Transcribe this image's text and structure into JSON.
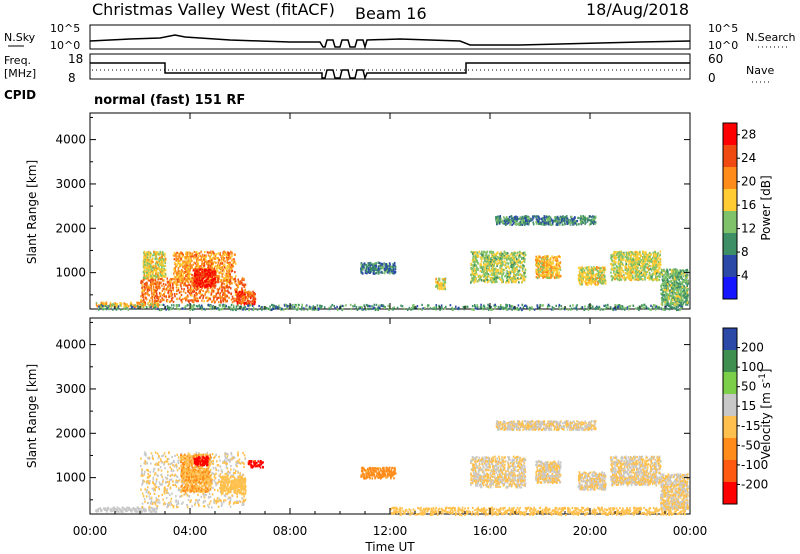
{
  "header": {
    "station": "Christmas Valley West (fitACF)",
    "beam": "Beam 16",
    "date": "18/Aug/2018"
  },
  "panels": {
    "nsky": {
      "label": "N.Sky",
      "scale_top": "10^5",
      "scale_bottom": "10^0",
      "right_label": "N.Search",
      "right_top": "10^5",
      "right_bottom": "10^0"
    },
    "freq": {
      "label_top": "Freq.",
      "label_bottom": "[MHz]",
      "tick_top": "18",
      "tick_bottom": "8",
      "right_label": "Nave",
      "right_top": "60",
      "right_bottom": "0"
    },
    "cpid": {
      "label": "CPID",
      "text": "normal (fast) 151 RF"
    }
  },
  "xaxis": {
    "label": "Time UT",
    "ticks": [
      "00:00",
      "04:00",
      "08:00",
      "12:00",
      "16:00",
      "20:00",
      "00:00"
    ]
  },
  "colors": {
    "power_scale": [
      "#1515ff",
      "#2c49a8",
      "#3f8f66",
      "#7fc26a",
      "#ffcc33",
      "#ff8c1a",
      "#f04a10",
      "#ff0000"
    ],
    "velocity_scale": [
      "#ff0000",
      "#ff5a10",
      "#ff8c1a",
      "#ffc04d",
      "#c8c8c8",
      "#7ccf48",
      "#3f8f50",
      "#2c49a8"
    ]
  },
  "chart_data": [
    {
      "type": "heatmap",
      "title": "",
      "xlabel": "Time UT",
      "ylabel": "Slant Range [km]",
      "xlim": [
        0,
        24
      ],
      "ylim": [
        180,
        4600
      ],
      "yticks": [
        "1000",
        "2000",
        "3000",
        "4000"
      ],
      "colorbar": {
        "label": "Power [dB]",
        "ticks": [
          "4",
          "8",
          "12",
          "16",
          "20",
          "24",
          "28"
        ],
        "range": [
          0,
          30
        ]
      },
      "regions": [
        {
          "t0": 0.2,
          "t1": 2.7,
          "r0": 250,
          "r1": 350,
          "value": 18
        },
        {
          "t0": 2.0,
          "t1": 6.2,
          "r0": 350,
          "r1": 900,
          "value": 22
        },
        {
          "t0": 2.1,
          "t1": 3.0,
          "r0": 900,
          "r1": 1500,
          "value": 16
        },
        {
          "t0": 3.3,
          "t1": 5.8,
          "r0": 800,
          "r1": 1500,
          "value": 20
        },
        {
          "t0": 4.1,
          "t1": 5.0,
          "r0": 700,
          "r1": 1100,
          "value": 27
        },
        {
          "t0": 5.8,
          "t1": 6.6,
          "r0": 300,
          "r1": 600,
          "value": 24
        },
        {
          "t0": 0.3,
          "t1": 23.7,
          "r0": 180,
          "r1": 300,
          "value": 10
        },
        {
          "t0": 10.8,
          "t1": 12.2,
          "r0": 1000,
          "r1": 1250,
          "value": 8
        },
        {
          "t0": 13.8,
          "t1": 14.2,
          "r0": 650,
          "r1": 900,
          "value": 16
        },
        {
          "t0": 15.2,
          "t1": 17.4,
          "r0": 800,
          "r1": 1500,
          "value": 14
        },
        {
          "t0": 17.8,
          "t1": 18.8,
          "r0": 900,
          "r1": 1400,
          "value": 18
        },
        {
          "t0": 19.5,
          "t1": 20.6,
          "r0": 750,
          "r1": 1150,
          "value": 16
        },
        {
          "t0": 20.8,
          "t1": 22.8,
          "r0": 850,
          "r1": 1500,
          "value": 15
        },
        {
          "t0": 22.8,
          "t1": 23.9,
          "r0": 300,
          "r1": 1100,
          "value": 12
        },
        {
          "t0": 16.2,
          "t1": 20.2,
          "r0": 2100,
          "r1": 2300,
          "value": 9
        }
      ]
    },
    {
      "type": "heatmap",
      "title": "",
      "xlabel": "Time UT",
      "ylabel": "Slant Range [km]",
      "xlim": [
        0,
        24
      ],
      "ylim": [
        180,
        4600
      ],
      "yticks": [
        "1000",
        "2000",
        "3000",
        "4000"
      ],
      "colorbar": {
        "label": "Velocity [m s^-1]",
        "ticks": [
          "-200",
          "-100",
          "-50",
          "-15",
          "15",
          "50",
          "100",
          "200"
        ],
        "range": [
          -250,
          250
        ]
      },
      "regions": [
        {
          "t0": 0.2,
          "t1": 2.7,
          "r0": 250,
          "r1": 350,
          "value": 40
        },
        {
          "t0": 2.0,
          "t1": 6.2,
          "r0": 350,
          "r1": 1600,
          "value": 0
        },
        {
          "t0": 3.6,
          "t1": 4.8,
          "r0": 700,
          "r1": 1550,
          "value": -60
        },
        {
          "t0": 4.1,
          "t1": 4.7,
          "r0": 1300,
          "r1": 1500,
          "value": -210
        },
        {
          "t0": 5.2,
          "t1": 6.2,
          "r0": 650,
          "r1": 1050,
          "value": -40
        },
        {
          "t0": 6.3,
          "t1": 6.9,
          "r0": 1250,
          "r1": 1400,
          "value": -200
        },
        {
          "t0": 10.8,
          "t1": 12.2,
          "r0": 1000,
          "r1": 1250,
          "value": -80
        },
        {
          "t0": 12.0,
          "t1": 23.8,
          "r0": 180,
          "r1": 350,
          "value": -20
        },
        {
          "t0": 15.2,
          "t1": 17.4,
          "r0": 800,
          "r1": 1500,
          "value": 0
        },
        {
          "t0": 17.8,
          "t1": 18.8,
          "r0": 900,
          "r1": 1400,
          "value": 0
        },
        {
          "t0": 19.5,
          "t1": 20.6,
          "r0": 750,
          "r1": 1150,
          "value": 0
        },
        {
          "t0": 20.8,
          "t1": 22.8,
          "r0": 850,
          "r1": 1500,
          "value": 0
        },
        {
          "t0": 22.8,
          "t1": 23.9,
          "r0": 300,
          "r1": 1100,
          "value": 0
        },
        {
          "t0": 16.2,
          "t1": 20.2,
          "r0": 2100,
          "r1": 2300,
          "value": 0
        }
      ]
    }
  ]
}
